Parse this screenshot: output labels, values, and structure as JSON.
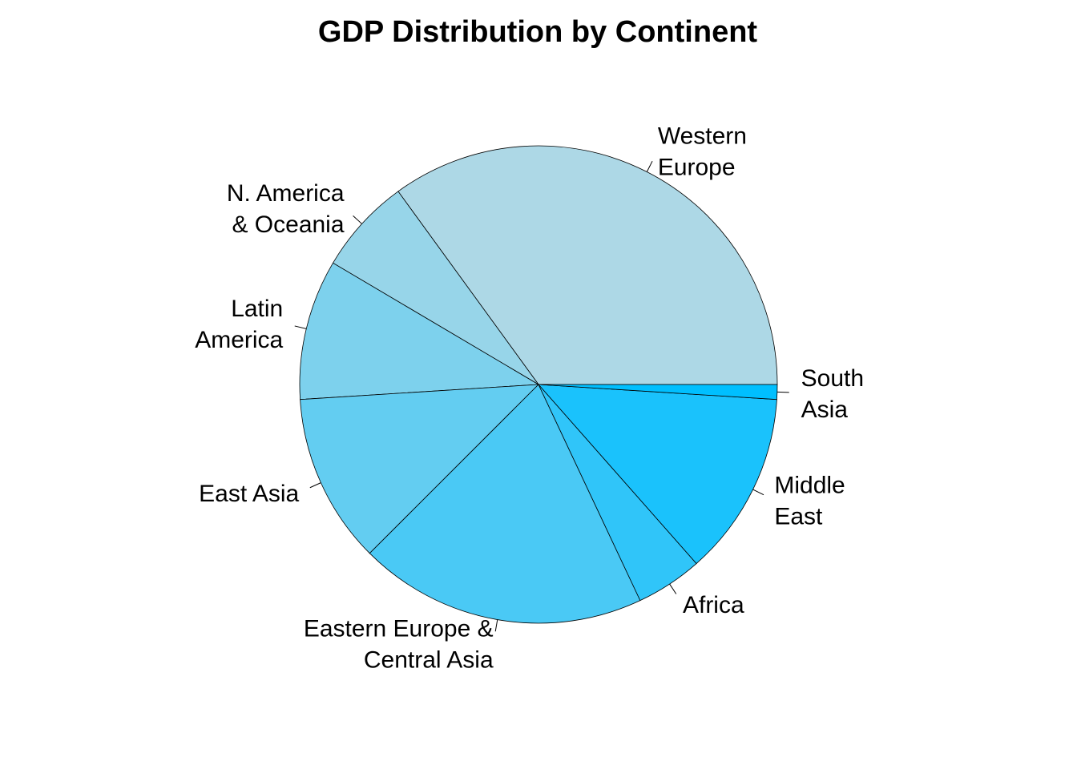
{
  "chart_data": {
    "type": "pie",
    "title": "GDP Distribution by Continent",
    "start_angle_deg": 0,
    "direction": "counterclockwise",
    "slices": [
      {
        "label": "Western Europe",
        "label_lines": [
          "Western",
          "Europe"
        ],
        "value": 35.0,
        "color": "#ADD8E6"
      },
      {
        "label": "N. America & Oceania",
        "label_lines": [
          "N. America",
          "& Oceania"
        ],
        "value": 6.5,
        "color": "#97D5E9"
      },
      {
        "label": "Latin America",
        "label_lines": [
          "Latin",
          "America"
        ],
        "value": 9.5,
        "color": "#7DD1ED"
      },
      {
        "label": "East Asia",
        "label_lines": [
          "East Asia"
        ],
        "value": 11.5,
        "color": "#63CDF1"
      },
      {
        "label": "Eastern Europe & Central Asia",
        "label_lines": [
          "Eastern Europe &",
          "Central Asia"
        ],
        "value": 19.5,
        "color": "#4AC9F5"
      },
      {
        "label": "Africa",
        "label_lines": [
          "Africa"
        ],
        "value": 4.5,
        "color": "#30C5F9"
      },
      {
        "label": "Middle East",
        "label_lines": [
          "Middle",
          "East"
        ],
        "value": 12.5,
        "color": "#1AC2FC"
      },
      {
        "label": "South Asia",
        "label_lines": [
          "South",
          "Asia"
        ],
        "value": 1.0,
        "color": "#00BFFF"
      }
    ]
  }
}
